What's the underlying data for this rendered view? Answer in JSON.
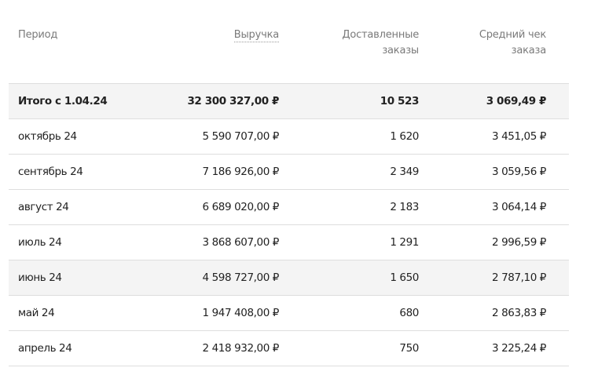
{
  "columns": {
    "period": "Период",
    "revenue": "Выручка",
    "orders": "Доставленные заказы",
    "avg_check": "Средний чек заказа"
  },
  "rows": [
    {
      "period": "Итого с 1.04.24",
      "revenue": "32 300 327,00 ₽",
      "orders": "10 523",
      "avg_check": "3 069,49 ₽"
    },
    {
      "period": "октябрь 24",
      "revenue": "5 590 707,00 ₽",
      "orders": "1 620",
      "avg_check": "3 451,05 ₽"
    },
    {
      "period": "сентябрь 24",
      "revenue": "7 186 926,00 ₽",
      "orders": "2 349",
      "avg_check": "3 059,56 ₽"
    },
    {
      "period": "август 24",
      "revenue": "6 689 020,00 ₽",
      "orders": "2 183",
      "avg_check": "3 064,14 ₽"
    },
    {
      "period": "июль 24",
      "revenue": "3 868 607,00 ₽",
      "orders": "1 291",
      "avg_check": "2 996,59 ₽"
    },
    {
      "period": "июнь 24",
      "revenue": "4 598 727,00 ₽",
      "orders": "1 650",
      "avg_check": "2 787,10 ₽"
    },
    {
      "period": "май 24",
      "revenue": "1 947 408,00 ₽",
      "orders": "680",
      "avg_check": "2 863,83 ₽"
    },
    {
      "period": "апрель 24",
      "revenue": "2 418 932,00 ₽",
      "orders": "750",
      "avg_check": "3 225,24 ₽"
    }
  ]
}
